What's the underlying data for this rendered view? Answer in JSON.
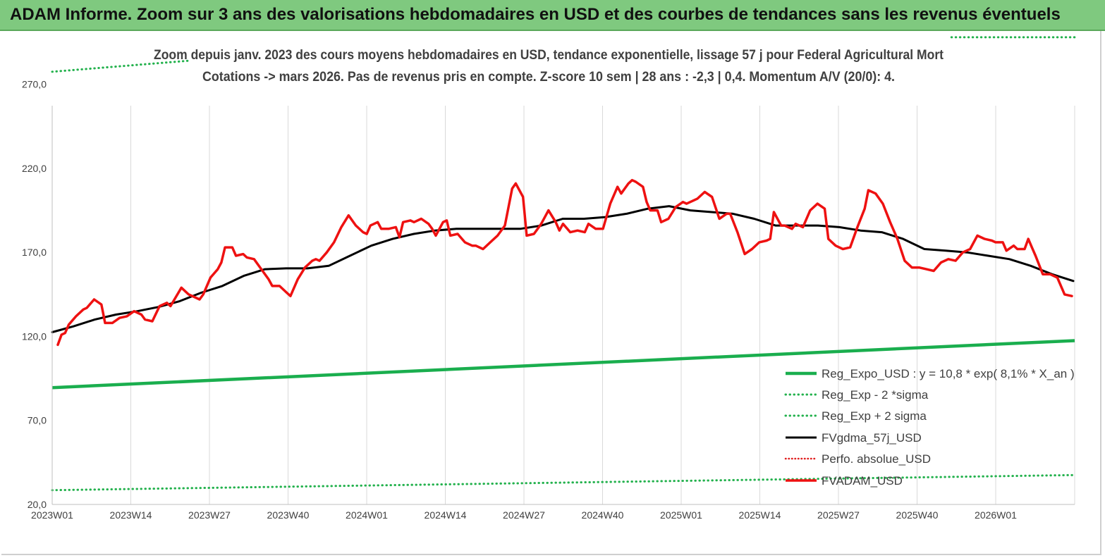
{
  "header": {
    "banner": "ADAM Informe. Zoom sur 3 ans des valorisations hebdomadaires en USD et des courbes de tendances sans les revenus éventuels"
  },
  "chart_data": {
    "type": "line",
    "title_line1": "Zoom depuis janv.  2023 des cours moyens  hebdomadaires en USD, tendance exponentielle, lissage 57 j pour Federal Agricultural Mort",
    "title_line2": "Cotations -> mars 2026. Pas de revenus pris en  compte. Z-score 10 sem  | 28 ans : -2,3  | 0,4. Momentum A/V (20/0): 4.",
    "x_ticks": [
      "2023W01",
      "2023W14",
      "2023W27",
      "2023W40",
      "2024W01",
      "2024W14",
      "2024W27",
      "2024W40",
      "2025W01",
      "2025W14",
      "2025W27",
      "2025W40",
      "2026W01"
    ],
    "x_range_weeks": [
      0,
      166
    ],
    "y_ticks": [
      "20,0",
      "70,0",
      "120,0",
      "170,0",
      "220,0",
      "270,0"
    ],
    "ylim": [
      20,
      290
    ],
    "grid": "vertical",
    "legend_position": "bottom-right",
    "colors": {
      "reg_expo": "#1aae4e",
      "sigma": "#22b14c",
      "fvgdma": "#000000",
      "perfo": "#e02020",
      "fvadam": "#ee1111"
    },
    "series": [
      {
        "name": "Reg_Expo_USD : y = 10,8 * exp( 8,1% *  X_an )",
        "style": "solid-thick",
        "start": [
          0,
          89.5
        ],
        "end": [
          166,
          117.5
        ]
      },
      {
        "name": "Reg_Exp - 2 *sigma",
        "style": "dotted",
        "start": [
          0,
          28.5
        ],
        "end": [
          166,
          37.5
        ]
      },
      {
        "name": "Reg_Exp + 2 sigma",
        "style": "dotted",
        "segments": [
          {
            "start": [
              0,
              277.5
            ],
            "end": [
              22,
              284
            ]
          },
          {
            "start": [
              146,
              298
            ],
            "end": [
              166,
              298
            ]
          }
        ]
      },
      {
        "name": "FVgdma_57j_USD",
        "style": "solid",
        "points": [
          [
            0,
            122.5
          ],
          [
            4,
            126
          ],
          [
            8,
            130
          ],
          [
            12,
            133
          ],
          [
            16,
            135
          ],
          [
            20,
            137.5
          ],
          [
            24,
            141
          ],
          [
            28,
            146
          ],
          [
            32,
            150
          ],
          [
            36,
            156
          ],
          [
            40,
            160
          ],
          [
            44,
            160.5
          ],
          [
            48,
            160.5
          ],
          [
            52,
            162
          ],
          [
            56,
            168
          ],
          [
            60,
            174
          ],
          [
            64,
            178
          ],
          [
            68,
            181
          ],
          [
            72,
            183
          ],
          [
            76,
            184
          ],
          [
            80,
            184
          ],
          [
            84,
            184
          ],
          [
            88,
            184
          ],
          [
            92,
            186
          ],
          [
            96,
            190
          ],
          [
            100,
            190
          ],
          [
            104,
            191
          ],
          [
            108,
            193
          ],
          [
            112,
            196
          ],
          [
            116,
            197.5
          ],
          [
            120,
            195
          ],
          [
            124,
            194
          ],
          [
            128,
            193
          ],
          [
            132,
            190
          ],
          [
            136,
            186
          ],
          [
            140,
            186
          ],
          [
            144,
            186
          ],
          [
            148,
            185
          ],
          [
            152,
            183
          ],
          [
            156,
            182
          ],
          [
            160,
            178
          ],
          [
            164,
            172
          ],
          [
            168,
            171
          ],
          [
            172,
            170
          ],
          [
            176,
            168
          ],
          [
            180,
            166
          ],
          [
            184,
            162
          ],
          [
            188,
            157
          ],
          [
            192,
            153
          ]
        ]
      },
      {
        "name": "Perfo. absolue_USD",
        "style": "dotted",
        "points": []
      },
      {
        "name": "FVADAM_USD",
        "style": "solid-thick",
        "points": [
          [
            0,
            115
          ],
          [
            1,
            121
          ],
          [
            2,
            122
          ],
          [
            3,
            127
          ],
          [
            5,
            132
          ],
          [
            7,
            136
          ],
          [
            8,
            137
          ],
          [
            10,
            142
          ],
          [
            12,
            139
          ],
          [
            13,
            128
          ],
          [
            15,
            128
          ],
          [
            17,
            131
          ],
          [
            19,
            132
          ],
          [
            21,
            135
          ],
          [
            23,
            133
          ],
          [
            24,
            130
          ],
          [
            26,
            129
          ],
          [
            28,
            138
          ],
          [
            30,
            140
          ],
          [
            31,
            138
          ],
          [
            34,
            149
          ],
          [
            36,
            145
          ],
          [
            38,
            143
          ],
          [
            39,
            142
          ],
          [
            40,
            145
          ],
          [
            42,
            155
          ],
          [
            44,
            160
          ],
          [
            45,
            164
          ],
          [
            46,
            173
          ],
          [
            48,
            173
          ],
          [
            49,
            168
          ],
          [
            51,
            169
          ],
          [
            52,
            167
          ],
          [
            54,
            166
          ],
          [
            56,
            160
          ],
          [
            58,
            154
          ],
          [
            59,
            150
          ],
          [
            61,
            150
          ],
          [
            63,
            146
          ],
          [
            64,
            144
          ],
          [
            66,
            154
          ],
          [
            68,
            161
          ],
          [
            70,
            165
          ],
          [
            71,
            166
          ],
          [
            72,
            165
          ],
          [
            74,
            170
          ],
          [
            76,
            176
          ],
          [
            78,
            185
          ],
          [
            80,
            192
          ],
          [
            82,
            186
          ],
          [
            84,
            182
          ],
          [
            85,
            181
          ],
          [
            86,
            186
          ],
          [
            88,
            188
          ],
          [
            89,
            184
          ],
          [
            91,
            184
          ],
          [
            93,
            185
          ],
          [
            94,
            179
          ],
          [
            95,
            188
          ],
          [
            97,
            189
          ],
          [
            98,
            188
          ],
          [
            100,
            190
          ],
          [
            102,
            187
          ],
          [
            103,
            184
          ],
          [
            104,
            180
          ],
          [
            106,
            188
          ],
          [
            107,
            189
          ],
          [
            108,
            180
          ],
          [
            110,
            181
          ],
          [
            112,
            176
          ],
          [
            114,
            174
          ],
          [
            115,
            174
          ],
          [
            117,
            172
          ],
          [
            119,
            176
          ],
          [
            121,
            180
          ],
          [
            123,
            186
          ],
          [
            125,
            208
          ],
          [
            126,
            211
          ],
          [
            128,
            203
          ],
          [
            129,
            180
          ],
          [
            131,
            181
          ],
          [
            133,
            187
          ],
          [
            135,
            195
          ],
          [
            137,
            188
          ],
          [
            138,
            183
          ],
          [
            139,
            187
          ],
          [
            141,
            182
          ],
          [
            143,
            183
          ],
          [
            145,
            182
          ],
          [
            146,
            187
          ],
          [
            148,
            184
          ],
          [
            150,
            184
          ],
          [
            152,
            199
          ],
          [
            154,
            209
          ],
          [
            155,
            205
          ],
          [
            157,
            211
          ],
          [
            158,
            213
          ],
          [
            159,
            212
          ],
          [
            161,
            209
          ],
          [
            162,
            200
          ],
          [
            163,
            195
          ],
          [
            165,
            195
          ],
          [
            166,
            188
          ],
          [
            168,
            190
          ],
          [
            170,
            197
          ],
          [
            172,
            200
          ],
          [
            173,
            199
          ],
          [
            175,
            201
          ],
          [
            176,
            202
          ],
          [
            178,
            206
          ],
          [
            180,
            203
          ],
          [
            182,
            190
          ],
          [
            184,
            193
          ],
          [
            185,
            193
          ],
          [
            187,
            182
          ],
          [
            189,
            169
          ],
          [
            191,
            172
          ],
          [
            193,
            176
          ],
          [
            195,
            177
          ],
          [
            196,
            178
          ],
          [
            197,
            194
          ],
          [
            199,
            186
          ],
          [
            200,
            186
          ],
          [
            202,
            184
          ],
          [
            203,
            187
          ],
          [
            205,
            185
          ],
          [
            207,
            195
          ],
          [
            209,
            199
          ],
          [
            211,
            196
          ],
          [
            212,
            178
          ],
          [
            214,
            174
          ],
          [
            216,
            172
          ],
          [
            218,
            173
          ],
          [
            220,
            185
          ],
          [
            222,
            196
          ],
          [
            223,
            207
          ],
          [
            225,
            205
          ],
          [
            227,
            199
          ],
          [
            229,
            188
          ],
          [
            231,
            178
          ],
          [
            233,
            165
          ],
          [
            235,
            161
          ],
          [
            237,
            161
          ],
          [
            239,
            160
          ],
          [
            241,
            159
          ],
          [
            243,
            164
          ],
          [
            245,
            166
          ],
          [
            247,
            165
          ],
          [
            249,
            170
          ],
          [
            251,
            172
          ],
          [
            253,
            180
          ],
          [
            255,
            178
          ],
          [
            257,
            177
          ],
          [
            258,
            176
          ],
          [
            260,
            176
          ],
          [
            261,
            171
          ],
          [
            263,
            174
          ],
          [
            264,
            172
          ],
          [
            266,
            172
          ],
          [
            267,
            178
          ],
          [
            268,
            173
          ],
          [
            269,
            168
          ],
          [
            271,
            157
          ],
          [
            273,
            157
          ],
          [
            275,
            155
          ],
          [
            277,
            145
          ],
          [
            279,
            144
          ]
        ]
      }
    ]
  }
}
